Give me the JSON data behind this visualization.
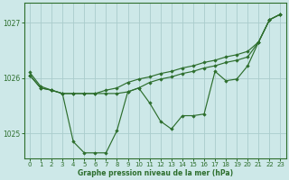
{
  "background_color": "#cde8e8",
  "grid_color": "#aacccc",
  "line_color": "#2d6e2d",
  "marker_color": "#2d6e2d",
  "xlabel": "Graphe pression niveau de la mer (hPa)",
  "ylim": [
    1024.55,
    1027.35
  ],
  "xlim": [
    -0.5,
    23.5
  ],
  "yticks": [
    1025,
    1026,
    1027
  ],
  "xticks": [
    0,
    1,
    2,
    3,
    4,
    5,
    6,
    7,
    8,
    9,
    10,
    11,
    12,
    13,
    14,
    15,
    16,
    17,
    18,
    19,
    20,
    21,
    22,
    23
  ],
  "series1": [
    1026.1,
    1025.85,
    1025.78,
    1025.72,
    1024.85,
    1024.65,
    1024.65,
    1024.65,
    1025.05,
    1025.75,
    1025.82,
    1025.55,
    1025.22,
    1025.08,
    1025.32,
    1025.32,
    1025.35,
    1026.12,
    1025.95,
    1025.98,
    1026.22,
    1026.65,
    1027.05,
    1027.15
  ],
  "series2": [
    1026.05,
    1025.82,
    1025.78,
    1025.72,
    1025.72,
    1025.72,
    1025.72,
    1025.72,
    1025.72,
    1025.75,
    1025.82,
    1025.92,
    1025.98,
    1026.02,
    1026.08,
    1026.12,
    1026.18,
    1026.22,
    1026.28,
    1026.32,
    1026.38,
    1026.65,
    1027.05,
    1027.15
  ],
  "series3": [
    1026.05,
    1025.82,
    1025.78,
    1025.72,
    1025.72,
    1025.72,
    1025.72,
    1025.78,
    1025.82,
    1025.92,
    1025.98,
    1026.02,
    1026.08,
    1026.12,
    1026.18,
    1026.22,
    1026.28,
    1026.32,
    1026.38,
    1026.42,
    1026.48,
    1026.65,
    1027.05,
    1027.15
  ],
  "figwidth": 3.2,
  "figheight": 2.0,
  "dpi": 100
}
